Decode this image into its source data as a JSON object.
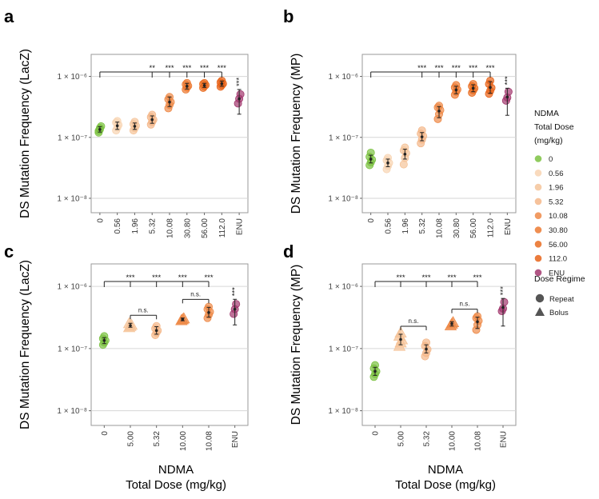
{
  "chart_data": [
    {
      "panel": "a",
      "type": "scatter",
      "ylabel": "DS Mutation Frequency (LacZ)",
      "xlabel": "",
      "yscale": "log",
      "ylim": [
        5.8e-09,
        2.3e-06
      ],
      "yticks": [
        {
          "value": 1e-08,
          "label": "1 × 10⁻⁸"
        },
        {
          "value": 1e-07,
          "label": "1 × 10⁻⁷"
        },
        {
          "value": 1e-06,
          "label": "1 × 10⁻⁶"
        }
      ],
      "categories": [
        "0",
        "0.56",
        "1.96",
        "5.32",
        "10.08",
        "30.80",
        "56.00",
        "112.0",
        "ENU"
      ],
      "groups": [
        {
          "x": "0",
          "points": [
            1.28e-07,
            1.42e-07,
            1.52e-07,
            1.2e-07,
            1.35e-07
          ],
          "mean": 1.35e-07,
          "err": [
            1.22e-07,
            1.5e-07
          ],
          "marker": "circle"
        },
        {
          "x": "0.56",
          "points": [
            1.3e-07,
            1.45e-07,
            1.6e-07,
            1.75e-07,
            1.85e-07
          ],
          "mean": 1.55e-07,
          "err": [
            1.35e-07,
            1.78e-07
          ],
          "marker": "circle"
        },
        {
          "x": "1.96",
          "points": [
            1.3e-07,
            1.42e-07,
            1.55e-07,
            1.65e-07,
            1.8e-07
          ],
          "mean": 1.52e-07,
          "err": [
            1.35e-07,
            1.72e-07
          ],
          "marker": "circle"
        },
        {
          "x": "5.32",
          "points": [
            1.62e-07,
            1.8e-07,
            1.95e-07,
            2.15e-07,
            2.35e-07
          ],
          "mean": 1.95e-07,
          "err": [
            1.7e-07,
            2.25e-07
          ],
          "marker": "circle"
        },
        {
          "x": "10.08",
          "points": [
            3e-07,
            3.4e-07,
            3.8e-07,
            4.2e-07,
            4.6e-07
          ],
          "mean": 3.8e-07,
          "err": [
            3.2e-07,
            4.6e-07
          ],
          "marker": "circle"
        },
        {
          "x": "30.80",
          "points": [
            6.1e-07,
            6.6e-07,
            7e-07,
            7.4e-07,
            7.8e-07
          ],
          "mean": 6.9e-07,
          "err": [
            6.2e-07,
            7.7e-07
          ],
          "marker": "circle"
        },
        {
          "x": "56.00",
          "points": [
            6.5e-07,
            6.9e-07,
            7.2e-07,
            7.5e-07,
            7.8e-07
          ],
          "mean": 7.1e-07,
          "err": [
            6.6e-07,
            7.7e-07
          ],
          "marker": "circle"
        },
        {
          "x": "112.0",
          "points": [
            6.8e-07,
            7.2e-07,
            7.6e-07,
            8e-07,
            8.5e-07
          ],
          "mean": 7.6e-07,
          "err": [
            6.9e-07,
            8.4e-07
          ],
          "marker": "circle"
        },
        {
          "x": "ENU",
          "points": [
            3.6e-07,
            4.3e-07,
            5.1e-07
          ],
          "mean": 4.3e-07,
          "err": [
            2.4e-07,
            6.1e-07
          ],
          "marker": "circle"
        }
      ],
      "significance": [
        {
          "x": "5.32",
          "label": "**"
        },
        {
          "x": "10.08",
          "label": "***"
        },
        {
          "x": "30.80",
          "label": "***"
        },
        {
          "x": "56.00",
          "label": "***"
        },
        {
          "x": "112.0",
          "label": "***"
        },
        {
          "x": "ENU",
          "label": "***",
          "vertical": true
        }
      ]
    },
    {
      "panel": "b",
      "type": "scatter",
      "ylabel": "DS Mutation Frequency (MP)",
      "xlabel": "",
      "yscale": "log",
      "ylim": [
        5.8e-09,
        2.3e-06
      ],
      "yticks": [
        {
          "value": 1e-08,
          "label": "1 × 10⁻⁸"
        },
        {
          "value": 1e-07,
          "label": "1 × 10⁻⁷"
        },
        {
          "value": 1e-06,
          "label": "1 × 10⁻⁶"
        }
      ],
      "categories": [
        "0",
        "0.56",
        "1.96",
        "5.32",
        "10.08",
        "30.80",
        "56.00",
        "112.0",
        "ENU"
      ],
      "groups": [
        {
          "x": "0",
          "points": [
            3.5e-08,
            3.9e-08,
            4.3e-08,
            4.8e-08,
            5.6e-08
          ],
          "mean": 4.4e-08,
          "err": [
            3.8e-08,
            5.1e-08
          ],
          "marker": "circle"
        },
        {
          "x": "0.56",
          "points": [
            3e-08,
            3.4e-08,
            3.8e-08,
            4.2e-08,
            4.6e-08
          ],
          "mean": 3.8e-08,
          "err": [
            3.3e-08,
            4.4e-08
          ],
          "marker": "circle"
        },
        {
          "x": "1.96",
          "points": [
            3.6e-08,
            4.6e-08,
            5.5e-08,
            6.1e-08,
            6.8e-08
          ],
          "mean": 5.3e-08,
          "err": [
            4.4e-08,
            6.4e-08
          ],
          "marker": "circle"
        },
        {
          "x": "5.32",
          "points": [
            8e-08,
            9.2e-08,
            1.05e-07,
            1.15e-07,
            1.3e-07
          ],
          "mean": 1.02e-07,
          "err": [
            8.8e-08,
            1.2e-07
          ],
          "marker": "circle"
        },
        {
          "x": "10.08",
          "points": [
            2e-07,
            2.4e-07,
            2.8e-07,
            3.1e-07,
            3.3e-07
          ],
          "mean": 2.7e-07,
          "err": [
            2.1e-07,
            3.2e-07
          ],
          "marker": "circle"
        },
        {
          "x": "30.80",
          "points": [
            5e-07,
            5.6e-07,
            6.1e-07,
            6.6e-07,
            7.2e-07
          ],
          "mean": 6e-07,
          "err": [
            5.2e-07,
            6.9e-07
          ],
          "marker": "circle"
        },
        {
          "x": "56.00",
          "points": [
            5.4e-07,
            5.9e-07,
            6.4e-07,
            6.9e-07,
            7.5e-07
          ],
          "mean": 6.4e-07,
          "err": [
            5.6e-07,
            7.3e-07
          ],
          "marker": "circle"
        },
        {
          "x": "112.0",
          "points": [
            5.2e-07,
            5.8e-07,
            6.5e-07,
            7.5e-07,
            8.5e-07
          ],
          "mean": 6.6e-07,
          "err": [
            5.3e-07,
            8.2e-07
          ],
          "marker": "circle"
        },
        {
          "x": "ENU",
          "points": [
            4e-07,
            4.5e-07,
            5.6e-07
          ],
          "mean": 4.6e-07,
          "err": [
            2.3e-07,
            6.4e-07
          ],
          "marker": "circle"
        }
      ],
      "significance": [
        {
          "x": "5.32",
          "label": "***"
        },
        {
          "x": "10.08",
          "label": "***"
        },
        {
          "x": "30.80",
          "label": "***"
        },
        {
          "x": "56.00",
          "label": "***"
        },
        {
          "x": "112.0",
          "label": "***"
        },
        {
          "x": "ENU",
          "label": "***",
          "vertical": true
        }
      ]
    },
    {
      "panel": "c",
      "type": "scatter",
      "ylabel": "DS Mutation Frequency (LacZ)",
      "xlabel_line1": "NDMA",
      "xlabel_line2": "Total Dose (mg/kg)",
      "yscale": "log",
      "ylim": [
        5.8e-09,
        2.3e-06
      ],
      "yticks": [
        {
          "value": 1e-08,
          "label": "1 × 10⁻⁸"
        },
        {
          "value": 1e-07,
          "label": "1 × 10⁻⁷"
        },
        {
          "value": 1e-06,
          "label": "1 × 10⁻⁶"
        }
      ],
      "categories": [
        "0",
        "5.00",
        "5.32",
        "10.00",
        "10.08",
        "ENU"
      ],
      "groups": [
        {
          "x": "0",
          "points": [
            1.15e-07,
            1.25e-07,
            1.35e-07,
            1.45e-07,
            1.58e-07
          ],
          "mean": 1.35e-07,
          "err": [
            1.2e-07,
            1.5e-07
          ],
          "marker": "circle",
          "color": "#7cc242"
        },
        {
          "x": "5.00",
          "points": [
            2.2e-07,
            2.3e-07,
            2.4e-07,
            2.55e-07
          ],
          "mean": 2.35e-07,
          "err": [
            2.2e-07,
            2.55e-07
          ],
          "marker": "triangle",
          "color": "#f5c49a"
        },
        {
          "x": "5.32",
          "points": [
            1.65e-07,
            1.8e-07,
            1.95e-07,
            2.1e-07,
            2.3e-07
          ],
          "mean": 1.95e-07,
          "err": [
            1.7e-07,
            2.25e-07
          ],
          "marker": "circle",
          "color": "#f4b789"
        },
        {
          "x": "10.00",
          "points": [
            2.85e-07,
            2.95e-07,
            3.05e-07
          ],
          "mean": 2.95e-07,
          "err": [
            2.8e-07,
            3.1e-07
          ],
          "marker": "triangle",
          "color": "#ee8a48"
        },
        {
          "x": "10.08",
          "points": [
            3.1e-07,
            3.5e-07,
            3.9e-07,
            4.3e-07,
            4.7e-07
          ],
          "mean": 3.8e-07,
          "err": [
            3.2e-07,
            4.6e-07
          ],
          "marker": "circle",
          "color": "#ee8a48"
        },
        {
          "x": "ENU",
          "points": [
            3.6e-07,
            4.3e-07,
            5.2e-07
          ],
          "mean": 4.3e-07,
          "err": [
            2.4e-07,
            6.2e-07
          ],
          "marker": "circle",
          "color": "#a2386e"
        }
      ],
      "significance": [
        {
          "x": "5.00",
          "label": "***"
        },
        {
          "x": "5.32",
          "label": "***"
        },
        {
          "x": "10.00",
          "label": "***"
        },
        {
          "x": "10.08",
          "label": "***"
        },
        {
          "x": "ENU",
          "label": "***",
          "vertical": true
        }
      ],
      "ns_brackets": [
        {
          "from": "5.00",
          "to": "5.32",
          "label": "n.s."
        },
        {
          "from": "10.00",
          "to": "10.08",
          "label": "n.s."
        }
      ]
    },
    {
      "panel": "d",
      "type": "scatter",
      "ylabel": "DS Mutation Frequency (MP)",
      "xlabel_line1": "NDMA",
      "xlabel_line2": "Total Dose (mg/kg)",
      "yscale": "log",
      "ylim": [
        5.8e-09,
        2.3e-06
      ],
      "yticks": [
        {
          "value": 1e-08,
          "label": "1 × 10⁻⁸"
        },
        {
          "value": 1e-07,
          "label": "1 × 10⁻⁷"
        },
        {
          "value": 1e-06,
          "label": "1 × 10⁻⁶"
        }
      ],
      "categories": [
        "0",
        "5.00",
        "5.32",
        "10.00",
        "10.08",
        "ENU"
      ],
      "groups": [
        {
          "x": "0",
          "points": [
            3.5e-08,
            3.9e-08,
            4.3e-08,
            4.8e-08,
            5.4e-08
          ],
          "mean": 4.3e-08,
          "err": [
            3.7e-08,
            5e-08
          ],
          "marker": "circle",
          "color": "#7cc242"
        },
        {
          "x": "5.00",
          "points": [
            1.1e-07,
            1.25e-07,
            1.4e-07,
            1.6e-07,
            1.8e-07
          ],
          "mean": 1.4e-07,
          "err": [
            1.15e-07,
            1.7e-07
          ],
          "marker": "triangle",
          "color": "#f5c49a"
        },
        {
          "x": "5.32",
          "points": [
            7.5e-08,
            8.5e-08,
            9.7e-08,
            1.1e-07,
            1.25e-07
          ],
          "mean": 9.8e-08,
          "err": [
            8.5e-08,
            1.15e-07
          ],
          "marker": "circle",
          "color": "#f4b789"
        },
        {
          "x": "10.00",
          "points": [
            2.35e-07,
            2.5e-07,
            2.65e-07
          ],
          "mean": 2.5e-07,
          "err": [
            2.3e-07,
            2.7e-07
          ],
          "marker": "triangle",
          "color": "#ee8a48"
        },
        {
          "x": "10.08",
          "points": [
            2e-07,
            2.4e-07,
            2.8e-07,
            3.1e-07,
            3.3e-07
          ],
          "mean": 2.7e-07,
          "err": [
            2.1e-07,
            3.2e-07
          ],
          "marker": "circle",
          "color": "#ee8a48"
        },
        {
          "x": "ENU",
          "points": [
            4e-07,
            4.4e-07,
            5.6e-07
          ],
          "mean": 4.6e-07,
          "err": [
            2.3e-07,
            6.4e-07
          ],
          "marker": "circle",
          "color": "#a2386e"
        }
      ],
      "significance": [
        {
          "x": "5.00",
          "label": "***"
        },
        {
          "x": "5.32",
          "label": "***"
        },
        {
          "x": "10.00",
          "label": "***"
        },
        {
          "x": "10.08",
          "label": "***"
        },
        {
          "x": "ENU",
          "label": "***",
          "vertical": true
        }
      ],
      "ns_brackets": [
        {
          "from": "5.00",
          "to": "5.32",
          "label": "n.s."
        },
        {
          "from": "10.00",
          "to": "10.08",
          "label": "n.s."
        }
      ]
    }
  ],
  "dose_colors": {
    "0": "#7cc242",
    "0.56": "#f8d4b2",
    "1.96": "#f5c49a",
    "5.32": "#f4b789",
    "10.08": "#ee8a48",
    "30.80": "#ec7a33",
    "56.00": "#e96d22",
    "112.0": "#e8641a",
    "ENU": "#a2386e"
  },
  "legend_dose": {
    "title_lines": [
      "NDMA",
      "Total Dose",
      "(mg/kg)"
    ],
    "items": [
      {
        "label": "0",
        "color": "#7cc242"
      },
      {
        "label": "0.56",
        "color": "#f8d4b2"
      },
      {
        "label": "1.96",
        "color": "#f5c49a"
      },
      {
        "label": "5.32",
        "color": "#f4b789"
      },
      {
        "label": "10.08",
        "color": "#ee8a48"
      },
      {
        "label": "30.80",
        "color": "#ec7a33"
      },
      {
        "label": "56.00",
        "color": "#e96d22"
      },
      {
        "label": "112.0",
        "color": "#e8641a"
      },
      {
        "label": "ENU",
        "color": "#a2386e"
      }
    ]
  },
  "legend_regime": {
    "title": "Dose Regime",
    "items": [
      {
        "label": "Repeat",
        "shape": "circle"
      },
      {
        "label": "Bolus",
        "shape": "triangle"
      }
    ]
  }
}
